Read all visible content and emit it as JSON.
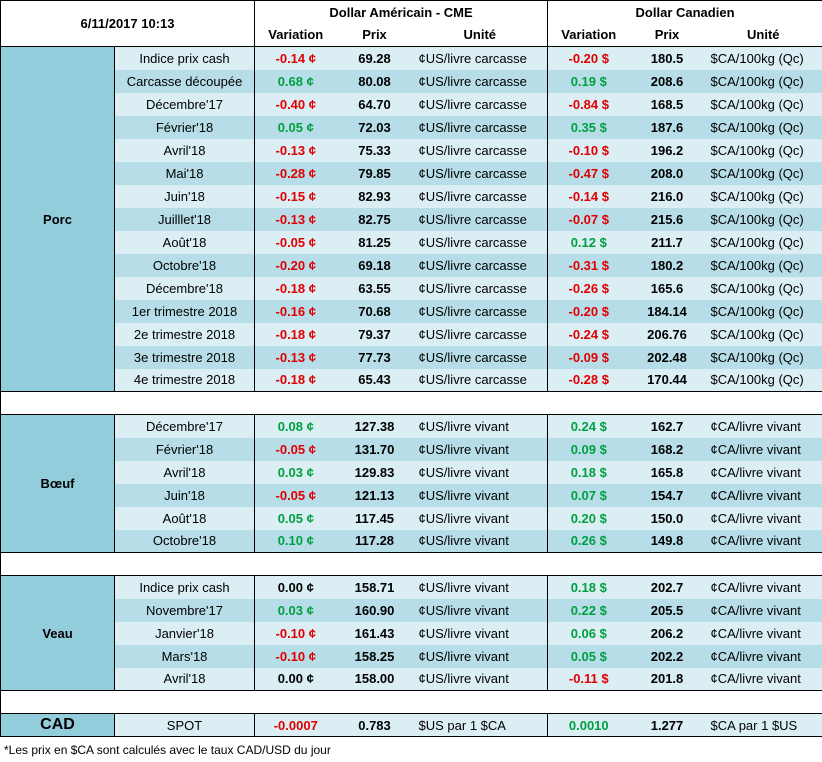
{
  "header": {
    "timestamp": "6/11/2017 10:13",
    "us_title": "Dollar Américain - CME",
    "ca_title": "Dollar Canadien",
    "variation": "Variation",
    "prix": "Prix",
    "unite": "Unité"
  },
  "porc": {
    "name": "Porc",
    "rows": [
      {
        "label": "Indice prix cash",
        "us_var": "-0.14 ¢",
        "us_price": "69.28",
        "us_unit": "¢US/livre carcasse",
        "ca_var": "-0.20 $",
        "ca_price": "180.5",
        "ca_unit": "$CA/100kg (Qc)",
        "us_sign": "neg",
        "ca_sign": "neg"
      },
      {
        "label": "Carcasse découpée",
        "us_var": "0.68 ¢",
        "us_price": "80.08",
        "us_unit": "¢US/livre carcasse",
        "ca_var": "0.19 $",
        "ca_price": "208.6",
        "ca_unit": "$CA/100kg (Qc)",
        "us_sign": "pos",
        "ca_sign": "pos"
      },
      {
        "label": "Décembre'17",
        "us_var": "-0.40 ¢",
        "us_price": "64.70",
        "us_unit": "¢US/livre carcasse",
        "ca_var": "-0.84 $",
        "ca_price": "168.5",
        "ca_unit": "$CA/100kg (Qc)",
        "us_sign": "neg",
        "ca_sign": "neg"
      },
      {
        "label": "Février'18",
        "us_var": "0.05 ¢",
        "us_price": "72.03",
        "us_unit": "¢US/livre carcasse",
        "ca_var": "0.35 $",
        "ca_price": "187.6",
        "ca_unit": "$CA/100kg (Qc)",
        "us_sign": "pos",
        "ca_sign": "pos"
      },
      {
        "label": "Avril'18",
        "us_var": "-0.13 ¢",
        "us_price": "75.33",
        "us_unit": "¢US/livre carcasse",
        "ca_var": "-0.10 $",
        "ca_price": "196.2",
        "ca_unit": "$CA/100kg (Qc)",
        "us_sign": "neg",
        "ca_sign": "neg"
      },
      {
        "label": "Mai'18",
        "us_var": "-0.28 ¢",
        "us_price": "79.85",
        "us_unit": "¢US/livre carcasse",
        "ca_var": "-0.47 $",
        "ca_price": "208.0",
        "ca_unit": "$CA/100kg (Qc)",
        "us_sign": "neg",
        "ca_sign": "neg"
      },
      {
        "label": "Juin'18",
        "us_var": "-0.15 ¢",
        "us_price": "82.93",
        "us_unit": "¢US/livre carcasse",
        "ca_var": "-0.14 $",
        "ca_price": "216.0",
        "ca_unit": "$CA/100kg (Qc)",
        "us_sign": "neg",
        "ca_sign": "neg"
      },
      {
        "label": "Juilllet'18",
        "us_var": "-0.13 ¢",
        "us_price": "82.75",
        "us_unit": "¢US/livre carcasse",
        "ca_var": "-0.07 $",
        "ca_price": "215.6",
        "ca_unit": "$CA/100kg (Qc)",
        "us_sign": "neg",
        "ca_sign": "neg"
      },
      {
        "label": "Août'18",
        "us_var": "-0.05 ¢",
        "us_price": "81.25",
        "us_unit": "¢US/livre carcasse",
        "ca_var": "0.12 $",
        "ca_price": "211.7",
        "ca_unit": "$CA/100kg (Qc)",
        "us_sign": "neg",
        "ca_sign": "pos"
      },
      {
        "label": "Octobre'18",
        "us_var": "-0.20 ¢",
        "us_price": "69.18",
        "us_unit": "¢US/livre carcasse",
        "ca_var": "-0.31 $",
        "ca_price": "180.2",
        "ca_unit": "$CA/100kg (Qc)",
        "us_sign": "neg",
        "ca_sign": "neg"
      },
      {
        "label": "Décembre'18",
        "us_var": "-0.18 ¢",
        "us_price": "63.55",
        "us_unit": "¢US/livre carcasse",
        "ca_var": "-0.26 $",
        "ca_price": "165.6",
        "ca_unit": "$CA/100kg (Qc)",
        "us_sign": "neg",
        "ca_sign": "neg"
      },
      {
        "label": "1er trimestre 2018",
        "us_var": "-0.16 ¢",
        "us_price": "70.68",
        "us_unit": "¢US/livre carcasse",
        "ca_var": "-0.20 $",
        "ca_price": "184.14",
        "ca_unit": "$CA/100kg (Qc)",
        "us_sign": "neg",
        "ca_sign": "neg"
      },
      {
        "label": "2e trimestre 2018",
        "us_var": "-0.18 ¢",
        "us_price": "79.37",
        "us_unit": "¢US/livre carcasse",
        "ca_var": "-0.24 $",
        "ca_price": "206.76",
        "ca_unit": "$CA/100kg (Qc)",
        "us_sign": "neg",
        "ca_sign": "neg"
      },
      {
        "label": "3e trimestre 2018",
        "us_var": "-0.13 ¢",
        "us_price": "77.73",
        "us_unit": "¢US/livre carcasse",
        "ca_var": "-0.09 $",
        "ca_price": "202.48",
        "ca_unit": "$CA/100kg (Qc)",
        "us_sign": "neg",
        "ca_sign": "neg"
      },
      {
        "label": "4e trimestre 2018",
        "us_var": "-0.18 ¢",
        "us_price": "65.43",
        "us_unit": "¢US/livre carcasse",
        "ca_var": "-0.28 $",
        "ca_price": "170.44",
        "ca_unit": "$CA/100kg (Qc)",
        "us_sign": "neg",
        "ca_sign": "neg"
      }
    ]
  },
  "boeuf": {
    "name": "Bœuf",
    "rows": [
      {
        "label": "Décembre'17",
        "us_var": "0.08 ¢",
        "us_price": "127.38",
        "us_unit": "¢US/livre vivant",
        "ca_var": "0.24 $",
        "ca_price": "162.7",
        "ca_unit": "¢CA/livre vivant",
        "us_sign": "pos",
        "ca_sign": "pos"
      },
      {
        "label": "Février'18",
        "us_var": "-0.05 ¢",
        "us_price": "131.70",
        "us_unit": "¢US/livre vivant",
        "ca_var": "0.09 $",
        "ca_price": "168.2",
        "ca_unit": "¢CA/livre vivant",
        "us_sign": "neg",
        "ca_sign": "pos"
      },
      {
        "label": "Avril'18",
        "us_var": "0.03 ¢",
        "us_price": "129.83",
        "us_unit": "¢US/livre vivant",
        "ca_var": "0.18 $",
        "ca_price": "165.8",
        "ca_unit": "¢CA/livre vivant",
        "us_sign": "pos",
        "ca_sign": "pos"
      },
      {
        "label": "Juin'18",
        "us_var": "-0.05 ¢",
        "us_price": "121.13",
        "us_unit": "¢US/livre vivant",
        "ca_var": "0.07 $",
        "ca_price": "154.7",
        "ca_unit": "¢CA/livre vivant",
        "us_sign": "neg",
        "ca_sign": "pos"
      },
      {
        "label": "Août'18",
        "us_var": "0.05 ¢",
        "us_price": "117.45",
        "us_unit": "¢US/livre vivant",
        "ca_var": "0.20 $",
        "ca_price": "150.0",
        "ca_unit": "¢CA/livre vivant",
        "us_sign": "pos",
        "ca_sign": "pos"
      },
      {
        "label": "Octobre'18",
        "us_var": "0.10 ¢",
        "us_price": "117.28",
        "us_unit": "¢US/livre vivant",
        "ca_var": "0.26 $",
        "ca_price": "149.8",
        "ca_unit": "¢CA/livre vivant",
        "us_sign": "pos",
        "ca_sign": "pos"
      }
    ]
  },
  "veau": {
    "name": "Veau",
    "rows": [
      {
        "label": "Indice prix cash",
        "us_var": "0.00 ¢",
        "us_price": "158.71",
        "us_unit": "¢US/livre vivant",
        "ca_var": "0.18 $",
        "ca_price": "202.7",
        "ca_unit": "¢CA/livre vivant",
        "us_sign": "zero",
        "ca_sign": "pos"
      },
      {
        "label": "Novembre'17",
        "us_var": "0.03 ¢",
        "us_price": "160.90",
        "us_unit": "¢US/livre vivant",
        "ca_var": "0.22 $",
        "ca_price": "205.5",
        "ca_unit": "¢CA/livre vivant",
        "us_sign": "pos",
        "ca_sign": "pos"
      },
      {
        "label": "Janvier'18",
        "us_var": "-0.10 ¢",
        "us_price": "161.43",
        "us_unit": "¢US/livre vivant",
        "ca_var": "0.06 $",
        "ca_price": "206.2",
        "ca_unit": "¢CA/livre vivant",
        "us_sign": "neg",
        "ca_sign": "pos"
      },
      {
        "label": "Mars'18",
        "us_var": "-0.10 ¢",
        "us_price": "158.25",
        "us_unit": "¢US/livre vivant",
        "ca_var": "0.05 $",
        "ca_price": "202.2",
        "ca_unit": "¢CA/livre vivant",
        "us_sign": "neg",
        "ca_sign": "pos"
      },
      {
        "label": "Avril'18",
        "us_var": "0.00 ¢",
        "us_price": "158.00",
        "us_unit": "¢US/livre vivant",
        "ca_var": "-0.11 $",
        "ca_price": "201.8",
        "ca_unit": "¢CA/livre vivant",
        "us_sign": "zero",
        "ca_sign": "neg"
      }
    ]
  },
  "cad": {
    "name": "CAD",
    "label": "SPOT",
    "us_var": "-0.0007",
    "us_price": "0.783",
    "us_unit": "$US par 1 $CA",
    "ca_var": "0.0010",
    "ca_price": "1.277",
    "ca_unit": "$CA par 1 $US",
    "us_sign": "neg",
    "ca_sign": "pos"
  },
  "footnote": "*Les  prix en $CA sont calculés avec le taux CAD/USD du jour",
  "colors": {
    "category_bg": "#92cddc",
    "row_light": "#daeef3",
    "row_dark": "#b7dee8",
    "negative": "#e00000",
    "positive": "#00a040"
  }
}
